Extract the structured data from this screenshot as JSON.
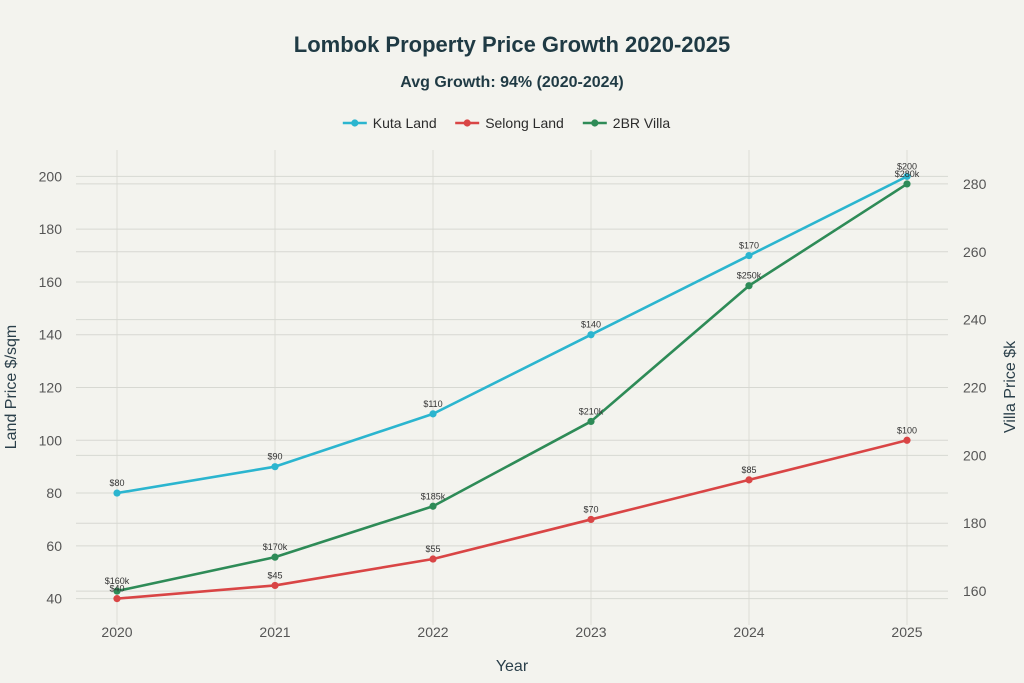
{
  "chart_data": {
    "type": "line",
    "title": "Lombok Property Price Growth 2020-2025",
    "subtitle": "Avg Growth: 94% (2020-2024)",
    "xlabel": "Year",
    "ylabel": "Land Price $/sqm",
    "y2label": "Villa Price $k",
    "x": [
      "2020",
      "2021",
      "2022",
      "2023",
      "2024",
      "2025"
    ],
    "ylim": [
      30,
      210
    ],
    "y2lim": [
      150,
      290
    ],
    "yticks": [
      40,
      60,
      80,
      100,
      120,
      140,
      160,
      180,
      200
    ],
    "y2ticks": [
      160,
      180,
      200,
      220,
      240,
      260,
      280
    ],
    "legend_position": "top-center",
    "grid": true,
    "series": [
      {
        "name": "Kuta Land",
        "axis": "left",
        "color": "#2bb5cf",
        "values": [
          80,
          90,
          110,
          140,
          170,
          200
        ],
        "labels": [
          "$80",
          "$90",
          "$110",
          "$140",
          "$170",
          "$200"
        ]
      },
      {
        "name": "Selong Land",
        "axis": "left",
        "color": "#d94545",
        "values": [
          40,
          45,
          55,
          70,
          85,
          100
        ],
        "labels": [
          "$40",
          "$45",
          "$55",
          "$70",
          "$85",
          "$100"
        ]
      },
      {
        "name": "2BR Villa",
        "axis": "right",
        "color": "#2e8b57",
        "values": [
          160,
          170,
          185,
          210,
          250,
          280
        ],
        "labels": [
          "$160k",
          "$170k",
          "$185k",
          "$210k",
          "$250k",
          "$280k"
        ]
      }
    ]
  }
}
